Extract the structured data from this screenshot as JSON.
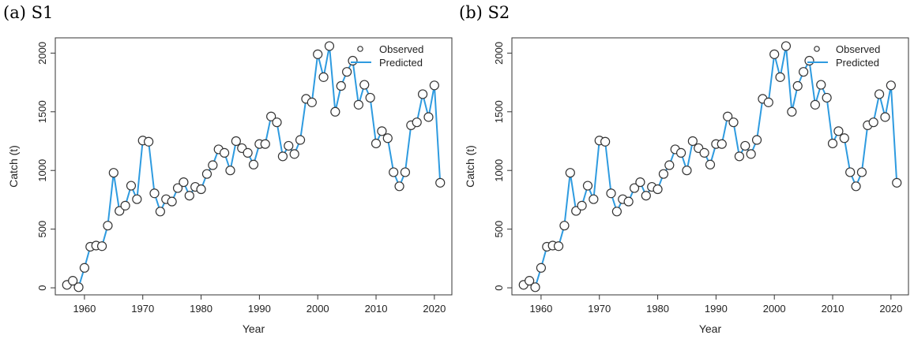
{
  "chart_data": [
    {
      "type": "line",
      "title": "(a) S1",
      "xlabel": "Year",
      "ylabel": "Catch (t)",
      "xlim": [
        1955,
        2023
      ],
      "ylim": [
        -60,
        2130
      ],
      "xticks": [
        "1960",
        "1970",
        "1980",
        "1990",
        "2000",
        "2010",
        "2020"
      ],
      "yticks": [
        "0",
        "500",
        "1000",
        "1500",
        "2000"
      ],
      "legend": {
        "position": "top-right",
        "entries": [
          "Observed",
          "Predicted"
        ]
      },
      "grid": false,
      "series": [
        {
          "name": "Observed",
          "marker": "circle"
        },
        {
          "name": "Predicted",
          "style": "line"
        }
      ],
      "x": [
        1957,
        1958,
        1959,
        1960,
        1961,
        1962,
        1963,
        1964,
        1965,
        1966,
        1967,
        1968,
        1969,
        1970,
        1971,
        1972,
        1973,
        1974,
        1975,
        1976,
        1977,
        1978,
        1979,
        1980,
        1981,
        1982,
        1983,
        1984,
        1985,
        1986,
        1987,
        1988,
        1989,
        1990,
        1991,
        1992,
        1993,
        1994,
        1995,
        1996,
        1997,
        1998,
        1999,
        2000,
        2001,
        2002,
        2003,
        2004,
        2005,
        2006,
        2007,
        2008,
        2009,
        2010,
        2011,
        2012,
        2013,
        2014,
        2015,
        2016,
        2017,
        2018,
        2019,
        2020,
        2021
      ],
      "values": [
        25,
        60,
        5,
        170,
        350,
        360,
        355,
        530,
        980,
        655,
        700,
        870,
        755,
        1255,
        1245,
        805,
        650,
        755,
        735,
        850,
        900,
        785,
        860,
        840,
        970,
        1045,
        1180,
        1150,
        1000,
        1250,
        1190,
        1150,
        1050,
        1225,
        1225,
        1460,
        1410,
        1120,
        1210,
        1140,
        1260,
        1610,
        1580,
        1990,
        1795,
        2060,
        1500,
        1720,
        1840,
        1935,
        1560,
        1730,
        1620,
        1230,
        1335,
        1275,
        985,
        865,
        985,
        1385,
        1410,
        1650,
        1455,
        1725,
        895
      ]
    },
    {
      "type": "line",
      "title": "(b) S2",
      "xlabel": "Year",
      "ylabel": "Catch (t)",
      "xlim": [
        1955,
        2023
      ],
      "ylim": [
        -60,
        2130
      ],
      "xticks": [
        "1960",
        "1970",
        "1980",
        "1990",
        "2000",
        "2010",
        "2020"
      ],
      "yticks": [
        "0",
        "500",
        "1000",
        "1500",
        "2000"
      ],
      "legend": {
        "position": "top-right",
        "entries": [
          "Observed",
          "Predicted"
        ]
      },
      "grid": false,
      "series": [
        {
          "name": "Observed",
          "marker": "circle"
        },
        {
          "name": "Predicted",
          "style": "line"
        }
      ],
      "x": [
        1957,
        1958,
        1959,
        1960,
        1961,
        1962,
        1963,
        1964,
        1965,
        1966,
        1967,
        1968,
        1969,
        1970,
        1971,
        1972,
        1973,
        1974,
        1975,
        1976,
        1977,
        1978,
        1979,
        1980,
        1981,
        1982,
        1983,
        1984,
        1985,
        1986,
        1987,
        1988,
        1989,
        1990,
        1991,
        1992,
        1993,
        1994,
        1995,
        1996,
        1997,
        1998,
        1999,
        2000,
        2001,
        2002,
        2003,
        2004,
        2005,
        2006,
        2007,
        2008,
        2009,
        2010,
        2011,
        2012,
        2013,
        2014,
        2015,
        2016,
        2017,
        2018,
        2019,
        2020,
        2021
      ],
      "values": [
        25,
        60,
        5,
        170,
        350,
        360,
        355,
        530,
        980,
        655,
        700,
        870,
        755,
        1255,
        1245,
        805,
        650,
        755,
        735,
        850,
        900,
        785,
        860,
        840,
        970,
        1045,
        1180,
        1150,
        1000,
        1250,
        1190,
        1150,
        1050,
        1225,
        1225,
        1460,
        1410,
        1120,
        1210,
        1140,
        1260,
        1610,
        1580,
        1990,
        1795,
        2060,
        1500,
        1720,
        1840,
        1935,
        1560,
        1730,
        1620,
        1230,
        1335,
        1275,
        985,
        865,
        985,
        1385,
        1410,
        1650,
        1455,
        1725,
        895
      ]
    }
  ],
  "colors": {
    "line": "#2e9be0",
    "marker_fill": "#ffffff",
    "marker_stroke": "#333333",
    "axis": "#333333"
  }
}
